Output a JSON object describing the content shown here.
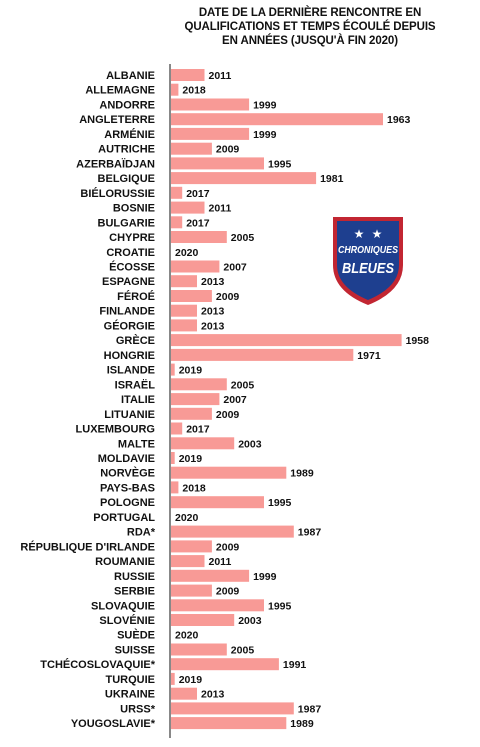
{
  "title_lines": [
    "DATE DE LA DERNIÈRE RENCONTRE EN",
    "QUALIFICATIONS ET TEMPS ÉCOULÉ DEPUIS",
    "EN ANNÉES (JUSQU'À FIN 2020)"
  ],
  "logo": {
    "line1": "CHRONIQUES",
    "line2": "BLEUES",
    "colors": {
      "shield": "#1e3f8f",
      "border": "#c22632",
      "stars": "#ffffff",
      "text": "#ffffff"
    }
  },
  "chart_data": {
    "type": "bar",
    "orientation": "horizontal",
    "reference_year": 2020,
    "bar_color": "#f89a96",
    "categories": [
      "ALBANIE",
      "ALLEMAGNE",
      "ANDORRE",
      "ANGLETERRE",
      "ARMÉNIE",
      "AUTRICHE",
      "AZERBAÏDJAN",
      "BELGIQUE",
      "BIÉLORUSSIE",
      "BOSNIE",
      "BULGARIE",
      "CHYPRE",
      "CROATIE",
      "ÉCOSSE",
      "ESPAGNE",
      "FÉROÉ",
      "FINLANDE",
      "GÉORGIE",
      "GRÈCE",
      "HONGRIE",
      "ISLANDE",
      "ISRAËL",
      "ITALIE",
      "LITUANIE",
      "LUXEMBOURG",
      "MALTE",
      "MOLDAVIE",
      "NORVÈGE",
      "PAYS-BAS",
      "POLOGNE",
      "PORTUGAL",
      "RDA*",
      "RÉPUBLIQUE D'IRLANDE",
      "ROUMANIE",
      "RUSSIE",
      "SERBIE",
      "SLOVAQUIE",
      "SLOVÉNIE",
      "SUÈDE",
      "SUISSE",
      "TCHÉCOSLOVAQUIE*",
      "TURQUIE",
      "UKRAINE",
      "URSS*",
      "YOUGOSLAVIE*"
    ],
    "labels": [
      "2011",
      "2018",
      "1999",
      "1963",
      "1999",
      "2009",
      "1995",
      "1981",
      "2017",
      "2011",
      "2017",
      "2005",
      "2020",
      "2007",
      "2013",
      "2009",
      "2013",
      "2013",
      "1958",
      "1971",
      "2019",
      "2005",
      "2007",
      "2009",
      "2017",
      "2003",
      "2019",
      "1989",
      "2018",
      "1995",
      "2020",
      "1987",
      "2009",
      "2011",
      "1999",
      "2009",
      "1995",
      "2003",
      "2020",
      "2005",
      "1991",
      "2019",
      "2013",
      "1987",
      "1989"
    ],
    "values": [
      2011,
      2018,
      1999,
      1963,
      1999,
      2009,
      1995,
      1981,
      2017,
      2011,
      2017,
      2005,
      2020,
      2007,
      2013,
      2009,
      2013,
      2013,
      1958,
      1971,
      2019,
      2005,
      2007,
      2009,
      2017,
      2003,
      2019,
      1989,
      2018,
      1995,
      2020,
      1987,
      2009,
      2011,
      1999,
      2009,
      1995,
      2003,
      2020,
      2005,
      1991,
      2019,
      2013,
      1987,
      1989
    ]
  }
}
